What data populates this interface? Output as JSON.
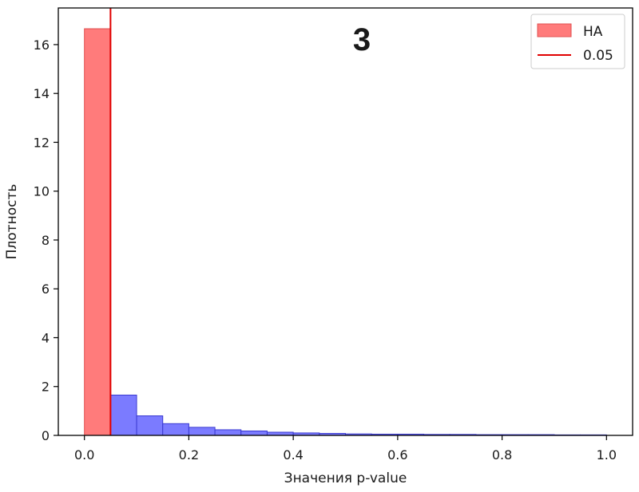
{
  "chart_data": {
    "type": "histogram",
    "panel_label": "3",
    "xlabel": "Значения p-value",
    "ylabel": "Плотность",
    "xlim": [
      -0.05,
      1.05
    ],
    "ylim": [
      0,
      17.5
    ],
    "x_ticks": [
      0.0,
      0.2,
      0.4,
      0.6,
      0.8,
      1.0
    ],
    "x_tick_labels": [
      "0.0",
      "0.2",
      "0.4",
      "0.6",
      "0.8",
      "1.0"
    ],
    "y_ticks": [
      0,
      2,
      4,
      6,
      8,
      10,
      12,
      14,
      16
    ],
    "y_tick_labels": [
      "0",
      "2",
      "4",
      "6",
      "8",
      "10",
      "12",
      "14",
      "16"
    ],
    "bin_width": 0.05,
    "series": [
      {
        "name": "HA",
        "color": "#ff7b7b",
        "edge_color": "#e05050",
        "bins": [
          {
            "x0": 0.0,
            "x1": 0.05,
            "value": 16.65
          }
        ]
      },
      {
        "color": "#7b7bff",
        "edge_color": "#3a3ad0",
        "bins": [
          {
            "x0": 0.05,
            "x1": 0.1,
            "value": 1.65
          },
          {
            "x0": 0.1,
            "x1": 0.15,
            "value": 0.8
          },
          {
            "x0": 0.15,
            "x1": 0.2,
            "value": 0.48
          },
          {
            "x0": 0.2,
            "x1": 0.25,
            "value": 0.33
          },
          {
            "x0": 0.25,
            "x1": 0.3,
            "value": 0.23
          },
          {
            "x0": 0.3,
            "x1": 0.35,
            "value": 0.18
          },
          {
            "x0": 0.35,
            "x1": 0.4,
            "value": 0.13
          },
          {
            "x0": 0.4,
            "x1": 0.45,
            "value": 0.1
          },
          {
            "x0": 0.45,
            "x1": 0.5,
            "value": 0.08
          },
          {
            "x0": 0.5,
            "x1": 0.55,
            "value": 0.06
          },
          {
            "x0": 0.55,
            "x1": 0.6,
            "value": 0.05
          },
          {
            "x0": 0.6,
            "x1": 0.65,
            "value": 0.05
          },
          {
            "x0": 0.65,
            "x1": 0.7,
            "value": 0.04
          },
          {
            "x0": 0.7,
            "x1": 0.75,
            "value": 0.04
          },
          {
            "x0": 0.75,
            "x1": 0.8,
            "value": 0.03
          },
          {
            "x0": 0.8,
            "x1": 0.85,
            "value": 0.03
          },
          {
            "x0": 0.85,
            "x1": 0.9,
            "value": 0.03
          },
          {
            "x0": 0.9,
            "x1": 0.95,
            "value": 0.02
          },
          {
            "x0": 0.95,
            "x1": 1.0,
            "value": 0.02
          }
        ]
      }
    ],
    "threshold_line": {
      "name": "0.05",
      "x": 0.05,
      "color": "#e00000"
    },
    "legend": {
      "placement": "top-right",
      "entries": [
        "HA",
        "0.05"
      ]
    },
    "grid": false
  }
}
